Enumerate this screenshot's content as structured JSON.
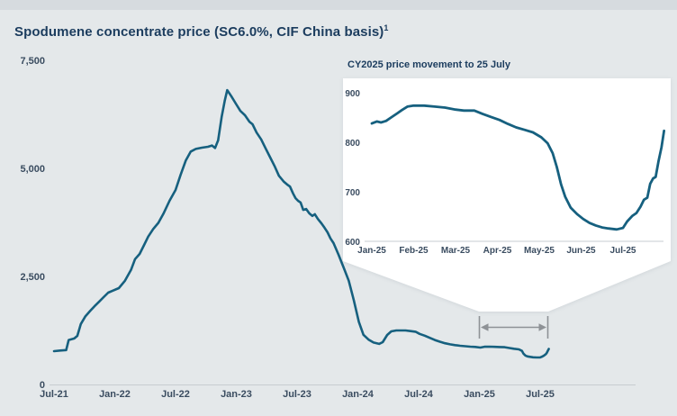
{
  "page": {
    "title": "Spodumene concentrate price (SC6.0%, CIF China basis)",
    "title_superscript": "1"
  },
  "colors": {
    "background": "#e4e8ea",
    "top_strip": "#d6dbdf",
    "line": "#16607f",
    "title_text": "#1b3c5e",
    "tick_text": "#3a4c60",
    "axis_line": "#c7ccd1",
    "arrow": "#8e9296",
    "callout_fill": "#ffffff"
  },
  "annotation": {
    "type": "zoom-callout-with-range-arrow",
    "description": "White callout panel funnels down to a gray double-headed arrow spanning Jan-25 to Jul-25 on the main chart",
    "arrow_span_from": "Jan-25",
    "arrow_span_to": "Jul-25"
  },
  "chart_data": [
    {
      "id": "main",
      "type": "line",
      "title": "Spodumene concentrate price (SC6.0%, CIF China basis)",
      "xlabel": "",
      "ylabel": "",
      "grid": false,
      "legend": "none",
      "ylim": [
        0,
        7500
      ],
      "y_ticks": [
        0,
        2500,
        5000,
        7500
      ],
      "y_tick_labels": [
        "0",
        "2,500",
        "5,000",
        "7,500"
      ],
      "x_tick_months_since_jul21": [
        0,
        6,
        12,
        18,
        24,
        30,
        36,
        42,
        48
      ],
      "x_tick_labels": [
        "Jul-21",
        "Jan-22",
        "Jul-22",
        "Jan-23",
        "Jul-23",
        "Jan-24",
        "Jul-24",
        "Jan-25",
        "Jul-25"
      ],
      "series": [
        {
          "name": "SC6.0% spodumene concentrate price",
          "x_unit": "months since Jul-2021",
          "points": [
            [
              0,
              770
            ],
            [
              0.6,
              785
            ],
            [
              1.2,
              795
            ],
            [
              1.45,
              1030
            ],
            [
              2.0,
              1065
            ],
            [
              2.3,
              1125
            ],
            [
              2.65,
              1400
            ],
            [
              3.1,
              1580
            ],
            [
              3.6,
              1710
            ],
            [
              4.0,
              1810
            ],
            [
              4.45,
              1915
            ],
            [
              4.9,
              2020
            ],
            [
              5.35,
              2125
            ],
            [
              5.8,
              2170
            ],
            [
              6.4,
              2230
            ],
            [
              7.0,
              2400
            ],
            [
              7.6,
              2650
            ],
            [
              8.0,
              2900
            ],
            [
              8.45,
              3020
            ],
            [
              8.9,
              3230
            ],
            [
              9.3,
              3420
            ],
            [
              9.8,
              3600
            ],
            [
              10.3,
              3740
            ],
            [
              10.8,
              3950
            ],
            [
              11.4,
              4250
            ],
            [
              12.0,
              4500
            ],
            [
              12.5,
              4850
            ],
            [
              13.0,
              5180
            ],
            [
              13.5,
              5390
            ],
            [
              14.0,
              5450
            ],
            [
              14.6,
              5480
            ],
            [
              15.2,
              5500
            ],
            [
              15.6,
              5530
            ],
            [
              15.9,
              5470
            ],
            [
              16.2,
              5650
            ],
            [
              16.55,
              6190
            ],
            [
              16.85,
              6560
            ],
            [
              17.1,
              6810
            ],
            [
              17.5,
              6670
            ],
            [
              17.95,
              6500
            ],
            [
              18.4,
              6330
            ],
            [
              18.85,
              6230
            ],
            [
              19.3,
              6080
            ],
            [
              19.6,
              6020
            ],
            [
              20.0,
              5830
            ],
            [
              20.45,
              5670
            ],
            [
              20.9,
              5460
            ],
            [
              21.35,
              5250
            ],
            [
              21.8,
              5040
            ],
            [
              22.2,
              4830
            ],
            [
              22.7,
              4690
            ],
            [
              23.0,
              4630
            ],
            [
              23.3,
              4580
            ],
            [
              23.6,
              4420
            ],
            [
              23.85,
              4310
            ],
            [
              24.1,
              4250
            ],
            [
              24.35,
              4210
            ],
            [
              24.6,
              4040
            ],
            [
              24.9,
              4060
            ],
            [
              25.2,
              3960
            ],
            [
              25.5,
              3900
            ],
            [
              25.75,
              3940
            ],
            [
              26.05,
              3830
            ],
            [
              26.4,
              3730
            ],
            [
              26.7,
              3630
            ],
            [
              27.0,
              3520
            ],
            [
              27.3,
              3380
            ],
            [
              27.6,
              3270
            ],
            [
              28.1,
              3000
            ],
            [
              28.6,
              2700
            ],
            [
              29.1,
              2400
            ],
            [
              29.6,
              1950
            ],
            [
              30.1,
              1450
            ],
            [
              30.55,
              1150
            ],
            [
              31.05,
              1040
            ],
            [
              31.55,
              970
            ],
            [
              32.1,
              940
            ],
            [
              32.45,
              980
            ],
            [
              32.9,
              1145
            ],
            [
              33.3,
              1230
            ],
            [
              33.8,
              1250
            ],
            [
              34.7,
              1250
            ],
            [
              35.2,
              1235
            ],
            [
              35.7,
              1220
            ],
            [
              36.1,
              1170
            ],
            [
              36.6,
              1130
            ],
            [
              37.1,
              1080
            ],
            [
              37.6,
              1030
            ],
            [
              38.1,
              990
            ],
            [
              38.6,
              955
            ],
            [
              39.1,
              930
            ],
            [
              39.6,
              910
            ],
            [
              40.1,
              895
            ],
            [
              40.6,
              885
            ],
            [
              41.1,
              875
            ],
            [
              41.6,
              868
            ],
            [
              42.1,
              855
            ],
            [
              42.5,
              872
            ],
            [
              43.0,
              874
            ],
            [
              43.5,
              871
            ],
            [
              44.0,
              866
            ],
            [
              44.5,
              862
            ],
            [
              44.9,
              845
            ],
            [
              45.4,
              828
            ],
            [
              45.9,
              812
            ],
            [
              46.2,
              778
            ],
            [
              46.35,
              715
            ],
            [
              46.55,
              668
            ],
            [
              46.75,
              650
            ],
            [
              47.0,
              640
            ],
            [
              47.3,
              630
            ],
            [
              47.65,
              625
            ],
            [
              48.0,
              627
            ],
            [
              48.2,
              645
            ],
            [
              48.4,
              672
            ],
            [
              48.55,
              700
            ],
            [
              48.65,
              730
            ],
            [
              48.75,
              775
            ],
            [
              48.85,
              823
            ]
          ]
        }
      ]
    },
    {
      "id": "inset",
      "type": "line",
      "title": "CY2025 price movement to 25 July",
      "xlabel": "",
      "ylabel": "",
      "grid": false,
      "legend": "none",
      "ylim": [
        600,
        900
      ],
      "y_ticks": [
        600,
        700,
        800,
        900
      ],
      "y_tick_labels": [
        "600",
        "700",
        "800",
        "900"
      ],
      "x_tick_months_since_jan25": [
        0,
        1,
        2,
        3,
        4,
        5,
        6
      ],
      "x_tick_labels": [
        "Jan-25",
        "Feb-25",
        "Mar-25",
        "Apr-25",
        "May-25",
        "Jun-25",
        "Jul-25"
      ],
      "series": [
        {
          "name": "CY2025 SC6.0% spodumene price to 25 July",
          "x_unit": "months since 1 Jan 2025",
          "points": [
            [
              0,
              838
            ],
            [
              0.12,
              842
            ],
            [
              0.22,
              840
            ],
            [
              0.34,
              843
            ],
            [
              0.48,
              851
            ],
            [
              0.6,
              858
            ],
            [
              0.72,
              865
            ],
            [
              0.85,
              872
            ],
            [
              1.0,
              874
            ],
            [
              1.25,
              874
            ],
            [
              1.5,
              872
            ],
            [
              1.75,
              870
            ],
            [
              2.0,
              866
            ],
            [
              2.2,
              864
            ],
            [
              2.45,
              864
            ],
            [
              2.65,
              857
            ],
            [
              2.85,
              851
            ],
            [
              3.05,
              845
            ],
            [
              3.25,
              837
            ],
            [
              3.45,
              830
            ],
            [
              3.65,
              825
            ],
            [
              3.85,
              820
            ],
            [
              4.05,
              810
            ],
            [
              4.2,
              798
            ],
            [
              4.32,
              778
            ],
            [
              4.42,
              750
            ],
            [
              4.52,
              715
            ],
            [
              4.62,
              690
            ],
            [
              4.75,
              668
            ],
            [
              4.9,
              655
            ],
            [
              5.05,
              645
            ],
            [
              5.2,
              637
            ],
            [
              5.35,
              632
            ],
            [
              5.5,
              628
            ],
            [
              5.65,
              626
            ],
            [
              5.85,
              624
            ],
            [
              6.0,
              627
            ],
            [
              6.1,
              640
            ],
            [
              6.22,
              651
            ],
            [
              6.32,
              657
            ],
            [
              6.42,
              670
            ],
            [
              6.5,
              684
            ],
            [
              6.58,
              688
            ],
            [
              6.65,
              716
            ],
            [
              6.72,
              727
            ],
            [
              6.78,
              730
            ],
            [
              6.85,
              762
            ],
            [
              6.92,
              790
            ],
            [
              6.98,
              823
            ]
          ]
        }
      ]
    }
  ]
}
